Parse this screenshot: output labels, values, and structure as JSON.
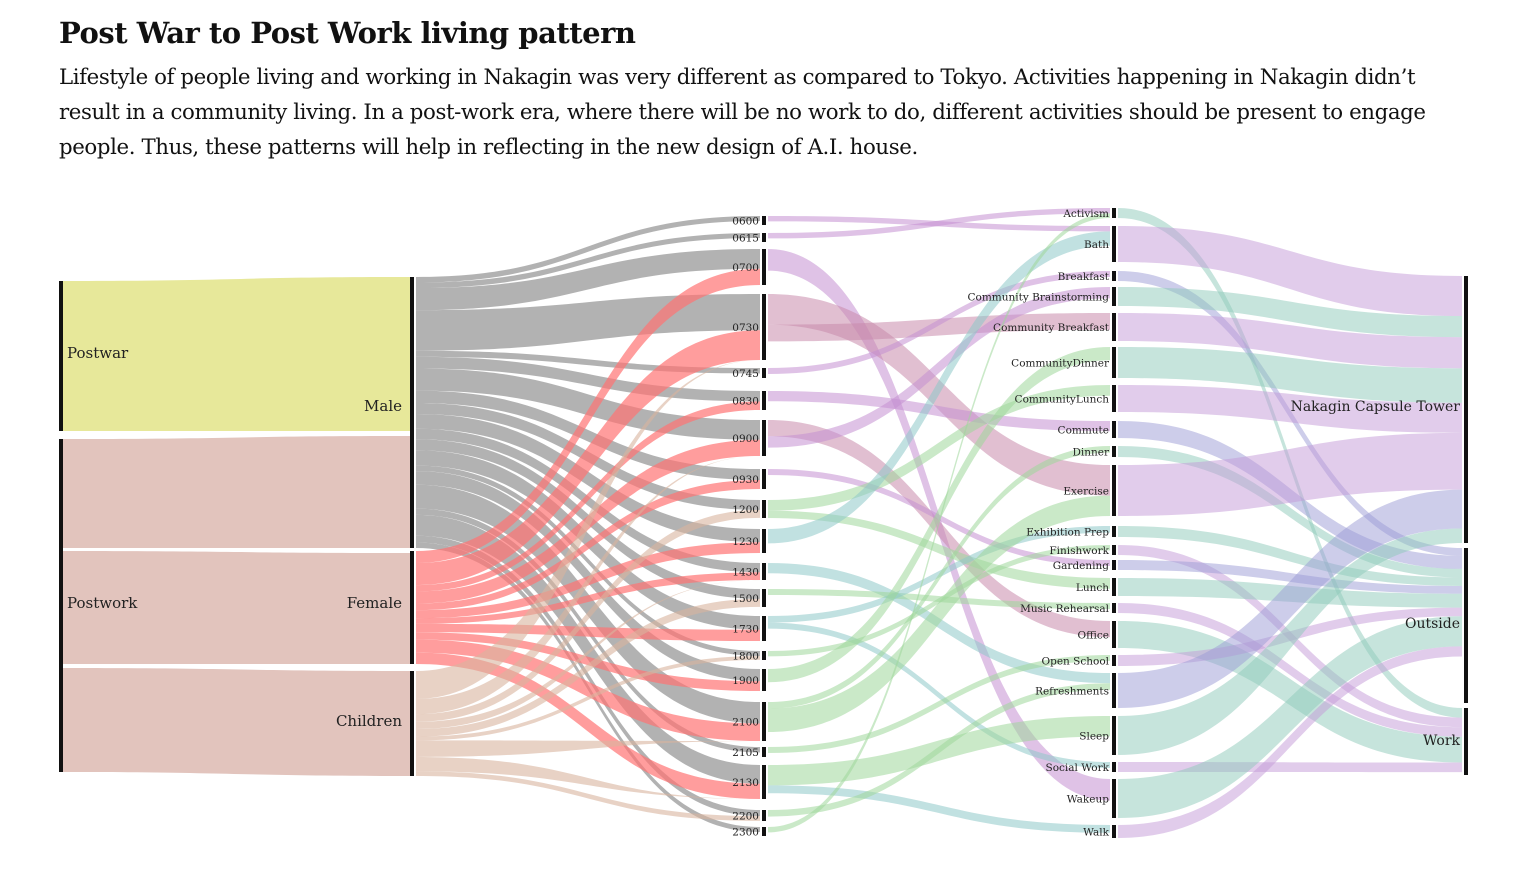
{
  "title": "Post War to Post Work living pattern",
  "description": "Lifestyle of people living and working in Nakagin was very different as compared to Tokyo. Activities happening in Nakagin didn’t result in a community living. In a post-work era, where there will be no work to do, different activities should be present to engage people. Thus, these patterns will help in reflecting in the new design of  A.I. house.",
  "colors": {
    "postwar": "#e7e89a",
    "postwork": "#e2c4bd",
    "male": "#a5a5a5",
    "female": "#ff7373",
    "children": "#d9b49e",
    "location": "#8ec9b9",
    "location_alt1": "#c39ad7",
    "location_alt2": "#9b9bd6",
    "activity_green": "#9fd79a",
    "activity_teal": "#8ec9c9",
    "activity_purple": "#c490d1",
    "activity_rose": "#c98bab"
  },
  "chart_data": {
    "type": "sankey",
    "title": "",
    "columns": [
      {
        "name": "era",
        "nodes": [
          "Postwar",
          "Postwork"
        ]
      },
      {
        "name": "group",
        "nodes": [
          "Male",
          "Female",
          "Children"
        ]
      },
      {
        "name": "time",
        "nodes": [
          "0600",
          "0615",
          "0700",
          "0730",
          "0745",
          "0830",
          "0900",
          "0930",
          "1200",
          "1230",
          "1430",
          "1500",
          "1730",
          "1800",
          "1900",
          "2100",
          "2105",
          "2130",
          "2200",
          "2300"
        ]
      },
      {
        "name": "activity",
        "nodes": [
          "Activism",
          "Bath",
          "Breakfast",
          "Community Brainstorming",
          "Community Breakfast",
          "CommunityDinner",
          "CommunityLunch",
          "Commute",
          "Dinner",
          "Exercise",
          "Exhibition Prep",
          "Finishwork",
          "Gardening",
          "Lunch",
          "Music Rehearsal",
          "Office",
          "Open School",
          "Refreshments",
          "Sleep",
          "Social Work",
          "Wakeup",
          "Walk"
        ]
      },
      {
        "name": "location",
        "nodes": [
          "Nakagin Capsule Tower",
          "Outside",
          "Work"
        ]
      }
    ],
    "node_values": {
      "Postwar": 1,
      "Postwork": 2,
      "Male": 1.55,
      "Female": 0.72,
      "Children": 0.67,
      "0600": 1,
      "0615": 1,
      "0700": 2,
      "0730": 6,
      "0745": 1,
      "0830": 2,
      "0900": 3,
      "0930": 2,
      "1200": 2,
      "1230": 2,
      "1430": 2,
      "1500": 2,
      "1730": 2,
      "1800": 1,
      "1900": 2,
      "2100": 3,
      "2105": 1,
      "2130": 3,
      "2200": 1,
      "2300": 1,
      "Activism": 1,
      "Bath": 4,
      "Breakfast": 1,
      "Community Brainstorming": 2,
      "Community Breakfast": 3,
      "CommunityDinner": 3,
      "CommunityLunch": 3,
      "Commute": 2,
      "Dinner": 1,
      "Exercise": 5,
      "Exhibition Prep": 1,
      "Finishwork": 1,
      "Gardening": 1,
      "Lunch": 2,
      "Music Rehearsal": 1,
      "Office": 2,
      "Open School": 1,
      "Refreshments": 4,
      "Sleep": 4,
      "Social Work": 1,
      "Wakeup": 4,
      "Walk": 1,
      "Nakagin Capsule Tower": 24,
      "Outside": 14,
      "Work": 6
    }
  }
}
